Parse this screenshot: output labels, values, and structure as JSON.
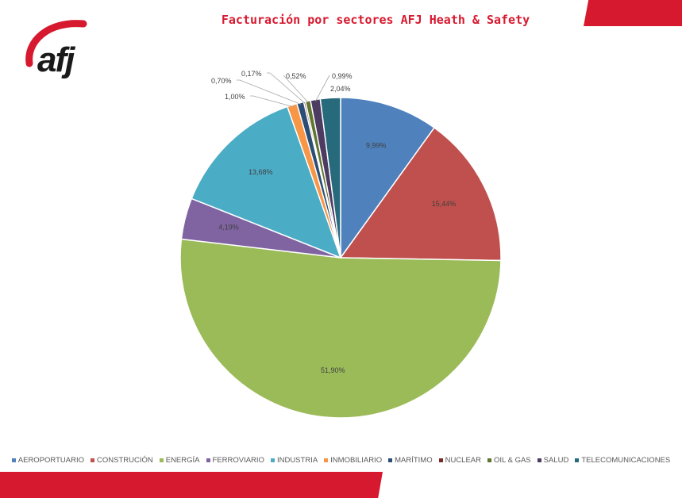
{
  "title": "Facturación por sectores AFJ Heath & Safety",
  "logo_text": "afj",
  "brand_color": "#d7192f",
  "chart_data": {
    "type": "pie",
    "title": "",
    "start": "top",
    "direction": "clockwise",
    "legend_position": "bottom",
    "categories": [
      "AEROPORTUARIO",
      "CONSTRUCIÓN",
      "ENERGÍA",
      "FERROVIARIO",
      "INDUSTRIA",
      "INMOBILIARIO",
      "MARÍTIMO",
      "NUCLEAR",
      "OIL & GAS",
      "SALUD",
      "TELECOMUNICACIONES"
    ],
    "values": [
      9.99,
      15.44,
      51.9,
      4.19,
      13.68,
      1.0,
      0.7,
      0.17,
      0.52,
      0.99,
      2.04
    ],
    "labels": [
      "9,99%",
      "15,44%",
      "51,90%",
      "4,19%",
      "13,68%",
      "1,00%",
      "0,70%",
      "0,17%",
      "0,52%",
      "0,99%",
      "2,04%"
    ],
    "colors": [
      "#4f81bd",
      "#c0504d",
      "#9bbb59",
      "#8064a2",
      "#4bacc6",
      "#f79646",
      "#2c4d75",
      "#772c2a",
      "#5f7530",
      "#4d3b62",
      "#276a7c"
    ]
  }
}
